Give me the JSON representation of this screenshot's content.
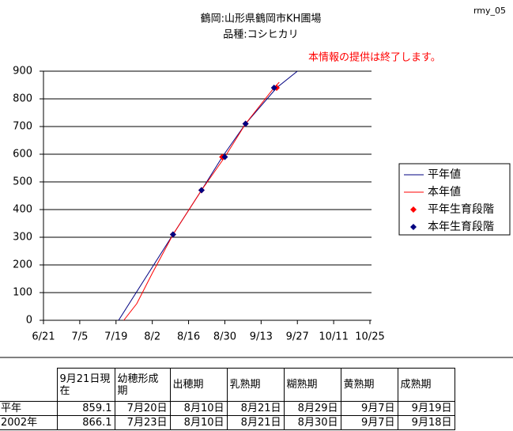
{
  "page_id": "rmy_05",
  "chart_data": {
    "type": "line",
    "title": "鶴岡:山形県鶴岡市KH圃場",
    "subtitle": "品種:コシヒカリ",
    "annotation": "本情報の提供は終了します。",
    "xlim": [
      172,
      298
    ],
    "xticks": [
      {
        "value": 172,
        "label": "6/21"
      },
      {
        "value": 186,
        "label": "7/5"
      },
      {
        "value": 200,
        "label": "7/19"
      },
      {
        "value": 214,
        "label": "8/2"
      },
      {
        "value": 228,
        "label": "8/16"
      },
      {
        "value": 242,
        "label": "8/30"
      },
      {
        "value": 256,
        "label": "9/13"
      },
      {
        "value": 270,
        "label": "9/27"
      },
      {
        "value": 284,
        "label": "10/11"
      },
      {
        "value": 298,
        "label": "10/25"
      }
    ],
    "ylim": [
      0,
      900
    ],
    "yticks": [
      0,
      100,
      200,
      300,
      400,
      500,
      600,
      700,
      800,
      900
    ],
    "grid": true,
    "legend": "right",
    "series": [
      {
        "name": "平年値",
        "color": "#000080",
        "style": "line",
        "x": [
          201,
          222,
          233,
          241,
          250,
          262,
          270
        ],
        "values": [
          0,
          310,
          470,
          590,
          710,
          840,
          900
        ]
      },
      {
        "name": "本年値",
        "color": "#ff0000",
        "style": "line",
        "x": [
          203,
          208,
          214,
          222,
          233,
          242,
          250,
          261,
          263
        ],
        "values": [
          0,
          60,
          170,
          310,
          470,
          590,
          710,
          840,
          860
        ]
      },
      {
        "name": "平年生育段階",
        "color": "#ff0000",
        "style": "marker",
        "x": [
          222,
          233,
          241,
          250,
          262
        ],
        "values": [
          310,
          470,
          590,
          710,
          840
        ]
      },
      {
        "name": "本年生育段階",
        "color": "#000080",
        "style": "marker",
        "x": [
          222,
          233,
          242,
          250,
          261
        ],
        "values": [
          310,
          470,
          590,
          710,
          840
        ]
      }
    ]
  },
  "table": {
    "columns": [
      "9月21日現在",
      "幼穂形成期",
      "出穂期",
      "乳熟期",
      "糊熟期",
      "黄熟期",
      "成熟期"
    ],
    "rows": [
      [
        "平年",
        "859.1",
        "7月20日",
        "8月10日",
        "8月21日",
        "8月29日",
        "9月7日",
        "9月19日"
      ],
      [
        "2002年",
        "866.1",
        "7月23日",
        "8月10日",
        "8月21日",
        "8月30日",
        "9月7日",
        "9月18日"
      ]
    ]
  }
}
